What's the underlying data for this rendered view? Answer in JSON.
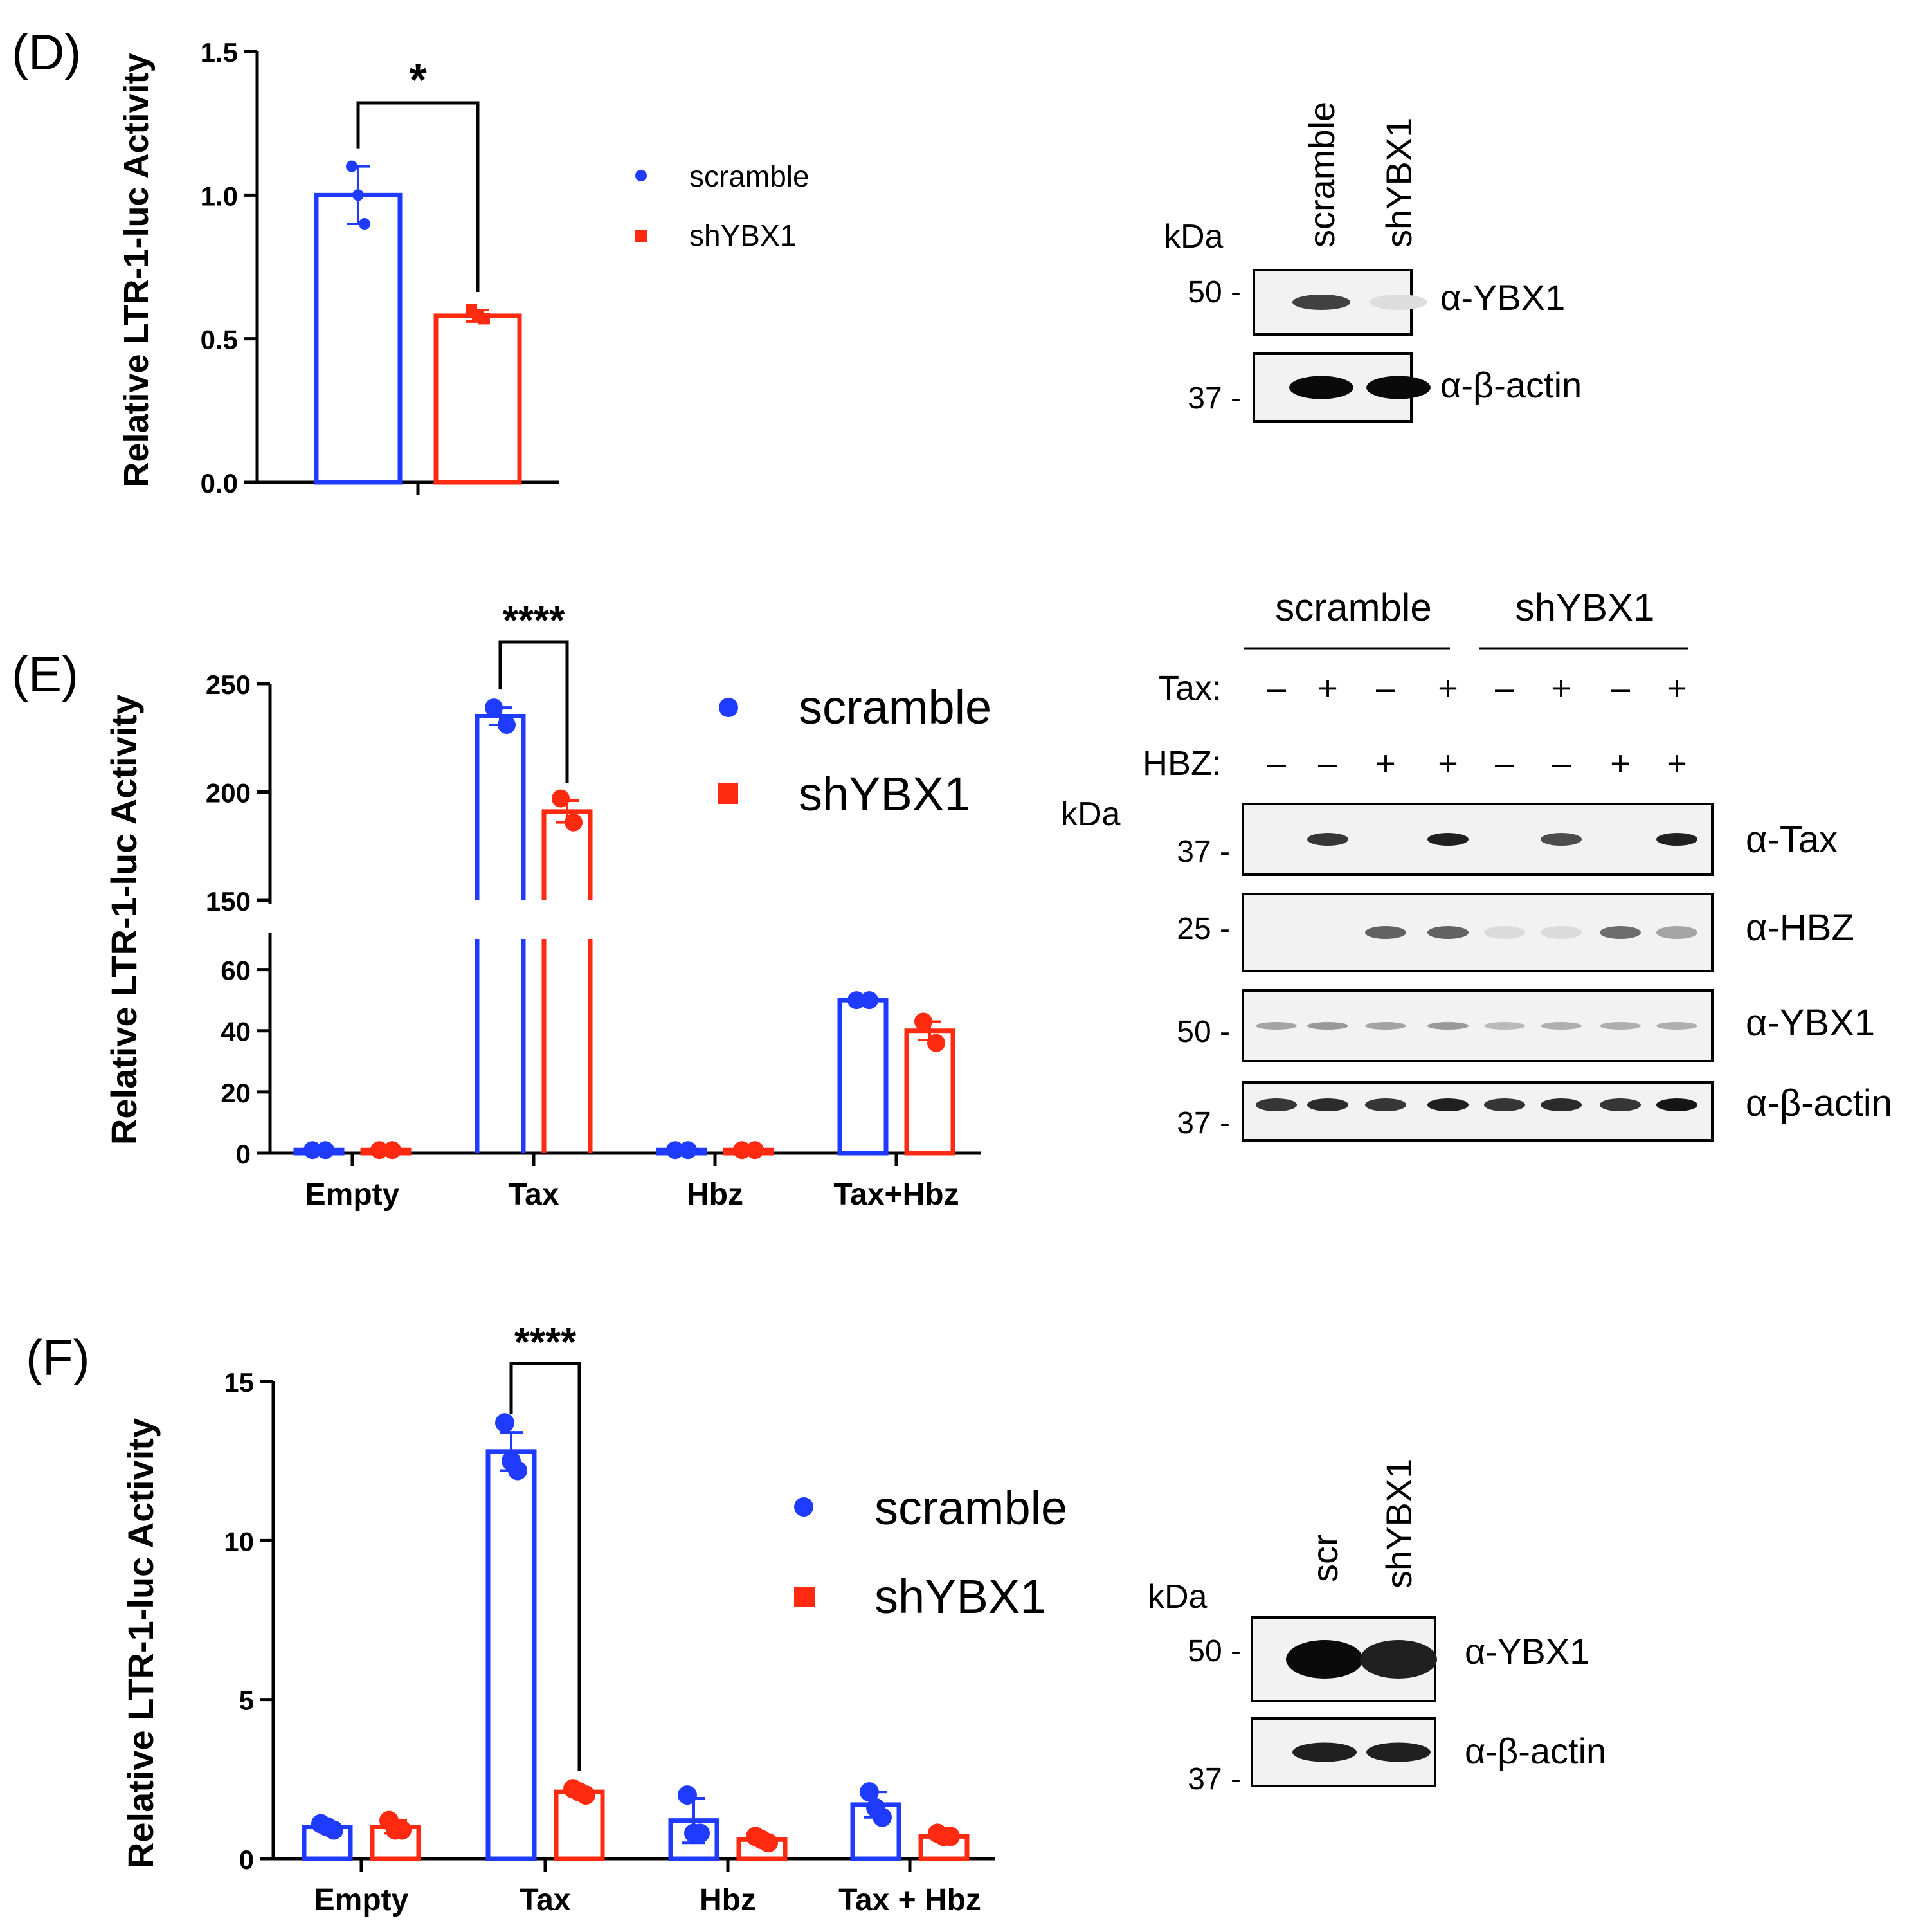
{
  "colors": {
    "scramble": "#1f3bff",
    "shYBX1": "#ff2a10",
    "axis": "#000000",
    "blot_bg": "#f2f2f2"
  },
  "legend_labels": {
    "scramble": "scramble",
    "shYBX1": "shYBX1"
  },
  "chart_data": [
    {
      "panel": "(D)",
      "type": "bar",
      "ylabel": "Relative LTR-1-luc Activity",
      "ylim": [
        0,
        1.5
      ],
      "yticks": [
        "0.0",
        "0.5",
        "1.0",
        "1.5"
      ],
      "categories": [
        ""
      ],
      "series": [
        {
          "name": "scramble",
          "values": [
            1.0
          ],
          "points": [
            [
              1.1,
              1.0,
              0.9
            ]
          ],
          "error": [
            0.1
          ]
        },
        {
          "name": "shYBX1",
          "values": [
            0.58
          ],
          "points": [
            [
              0.6,
              0.58,
              0.57
            ]
          ],
          "error": [
            0.02
          ]
        }
      ],
      "significance": "*"
    },
    {
      "panel": "(E)",
      "type": "bar",
      "ylabel": "Relative LTR-1-luc Activity",
      "axis_break": {
        "lower": [
          0,
          70
        ],
        "upper": [
          150,
          250
        ]
      },
      "yticks_lower": [
        "0",
        "20",
        "40",
        "60"
      ],
      "yticks_upper": [
        "150",
        "200",
        "250"
      ],
      "categories": [
        "Empty",
        "Tax",
        "Hbz",
        "Tax+Hbz"
      ],
      "series": [
        {
          "name": "scramble",
          "values": [
            1,
            235,
            1,
            50
          ],
          "points": [
            [
              1,
              1
            ],
            [
              239,
              231
            ],
            [
              1,
              1
            ],
            [
              50,
              50
            ]
          ],
          "error": [
            0,
            4,
            0,
            0
          ]
        },
        {
          "name": "shYBX1",
          "values": [
            1,
            191,
            1,
            40
          ],
          "points": [
            [
              1,
              1
            ],
            [
              197,
              186
            ],
            [
              1,
              1
            ],
            [
              43,
              36
            ]
          ],
          "error": [
            0,
            5,
            0,
            3
          ]
        }
      ],
      "significance": "****"
    },
    {
      "panel": "(F)",
      "type": "bar",
      "ylabel": "Relative LTR-1-luc Activity",
      "ylim": [
        0,
        15
      ],
      "yticks": [
        "0",
        "5",
        "10",
        "15"
      ],
      "categories": [
        "Empty",
        "Tax",
        "Hbz",
        "Tax + Hbz"
      ],
      "series": [
        {
          "name": "scramble",
          "values": [
            1.0,
            12.8,
            1.2,
            1.7
          ],
          "points": [
            [
              1.1,
              1.0,
              0.9
            ],
            [
              13.7,
              12.5,
              12.2
            ],
            [
              2.0,
              0.8,
              0.8
            ],
            [
              2.1,
              1.6,
              1.3
            ]
          ],
          "error": [
            0.1,
            0.6,
            0.7,
            0.4
          ]
        },
        {
          "name": "shYBX1",
          "values": [
            1.0,
            2.1,
            0.6,
            0.7
          ],
          "points": [
            [
              1.2,
              0.9,
              0.9
            ],
            [
              2.2,
              2.1,
              2.0
            ],
            [
              0.7,
              0.6,
              0.5
            ],
            [
              0.8,
              0.7,
              0.7
            ]
          ],
          "error": [
            0.2,
            0.1,
            0.1,
            0.1
          ]
        }
      ],
      "significance": "****"
    }
  ],
  "blots": {
    "D": {
      "lanes": [
        "scramble",
        "shYBX1"
      ],
      "kda_label": "kDa",
      "rows": [
        {
          "marker": "50 -",
          "antibody": "α-YBX1",
          "bands": [
            0.75,
            0.04
          ]
        },
        {
          "marker": "37 -",
          "antibody": "α-β-actin",
          "bands": [
            1.0,
            1.0
          ]
        }
      ]
    },
    "E": {
      "groups": [
        "scramble",
        "shYBX1"
      ],
      "tax_label": "Tax:",
      "hbz_label": "HBZ:",
      "tax_signs": [
        "–",
        "+",
        "–",
        "+",
        "–",
        "+",
        "–",
        "+"
      ],
      "hbz_signs": [
        "–",
        "–",
        "+",
        "+",
        "–",
        "–",
        "+",
        "+"
      ],
      "kda_label": "kDa",
      "rows": [
        {
          "marker": "37 -",
          "antibody": "α-Tax",
          "bands": [
            0,
            0.8,
            0,
            0.9,
            0,
            0.7,
            0,
            0.9
          ]
        },
        {
          "marker": "25 -",
          "antibody": "α-HBZ",
          "bands": [
            0,
            0,
            0.6,
            0.6,
            0.05,
            0.05,
            0.55,
            0.3
          ]
        },
        {
          "marker": "50 -",
          "antibody": "α-YBX1",
          "bands": [
            0.3,
            0.35,
            0.3,
            0.35,
            0.2,
            0.25,
            0.25,
            0.25
          ]
        },
        {
          "marker": "37 -",
          "antibody": "α-β-actin",
          "bands": [
            0.8,
            0.85,
            0.8,
            0.9,
            0.8,
            0.85,
            0.8,
            0.95
          ]
        }
      ]
    },
    "F": {
      "lanes": [
        "scr",
        "shYBX1"
      ],
      "kda_label": "kDa",
      "rows": [
        {
          "marker": "50 -",
          "antibody": "α-YBX1",
          "bands": [
            1.0,
            0.9
          ]
        },
        {
          "marker": "37 -",
          "antibody": "α-β-actin",
          "bands": [
            0.9,
            0.9
          ]
        }
      ]
    }
  }
}
